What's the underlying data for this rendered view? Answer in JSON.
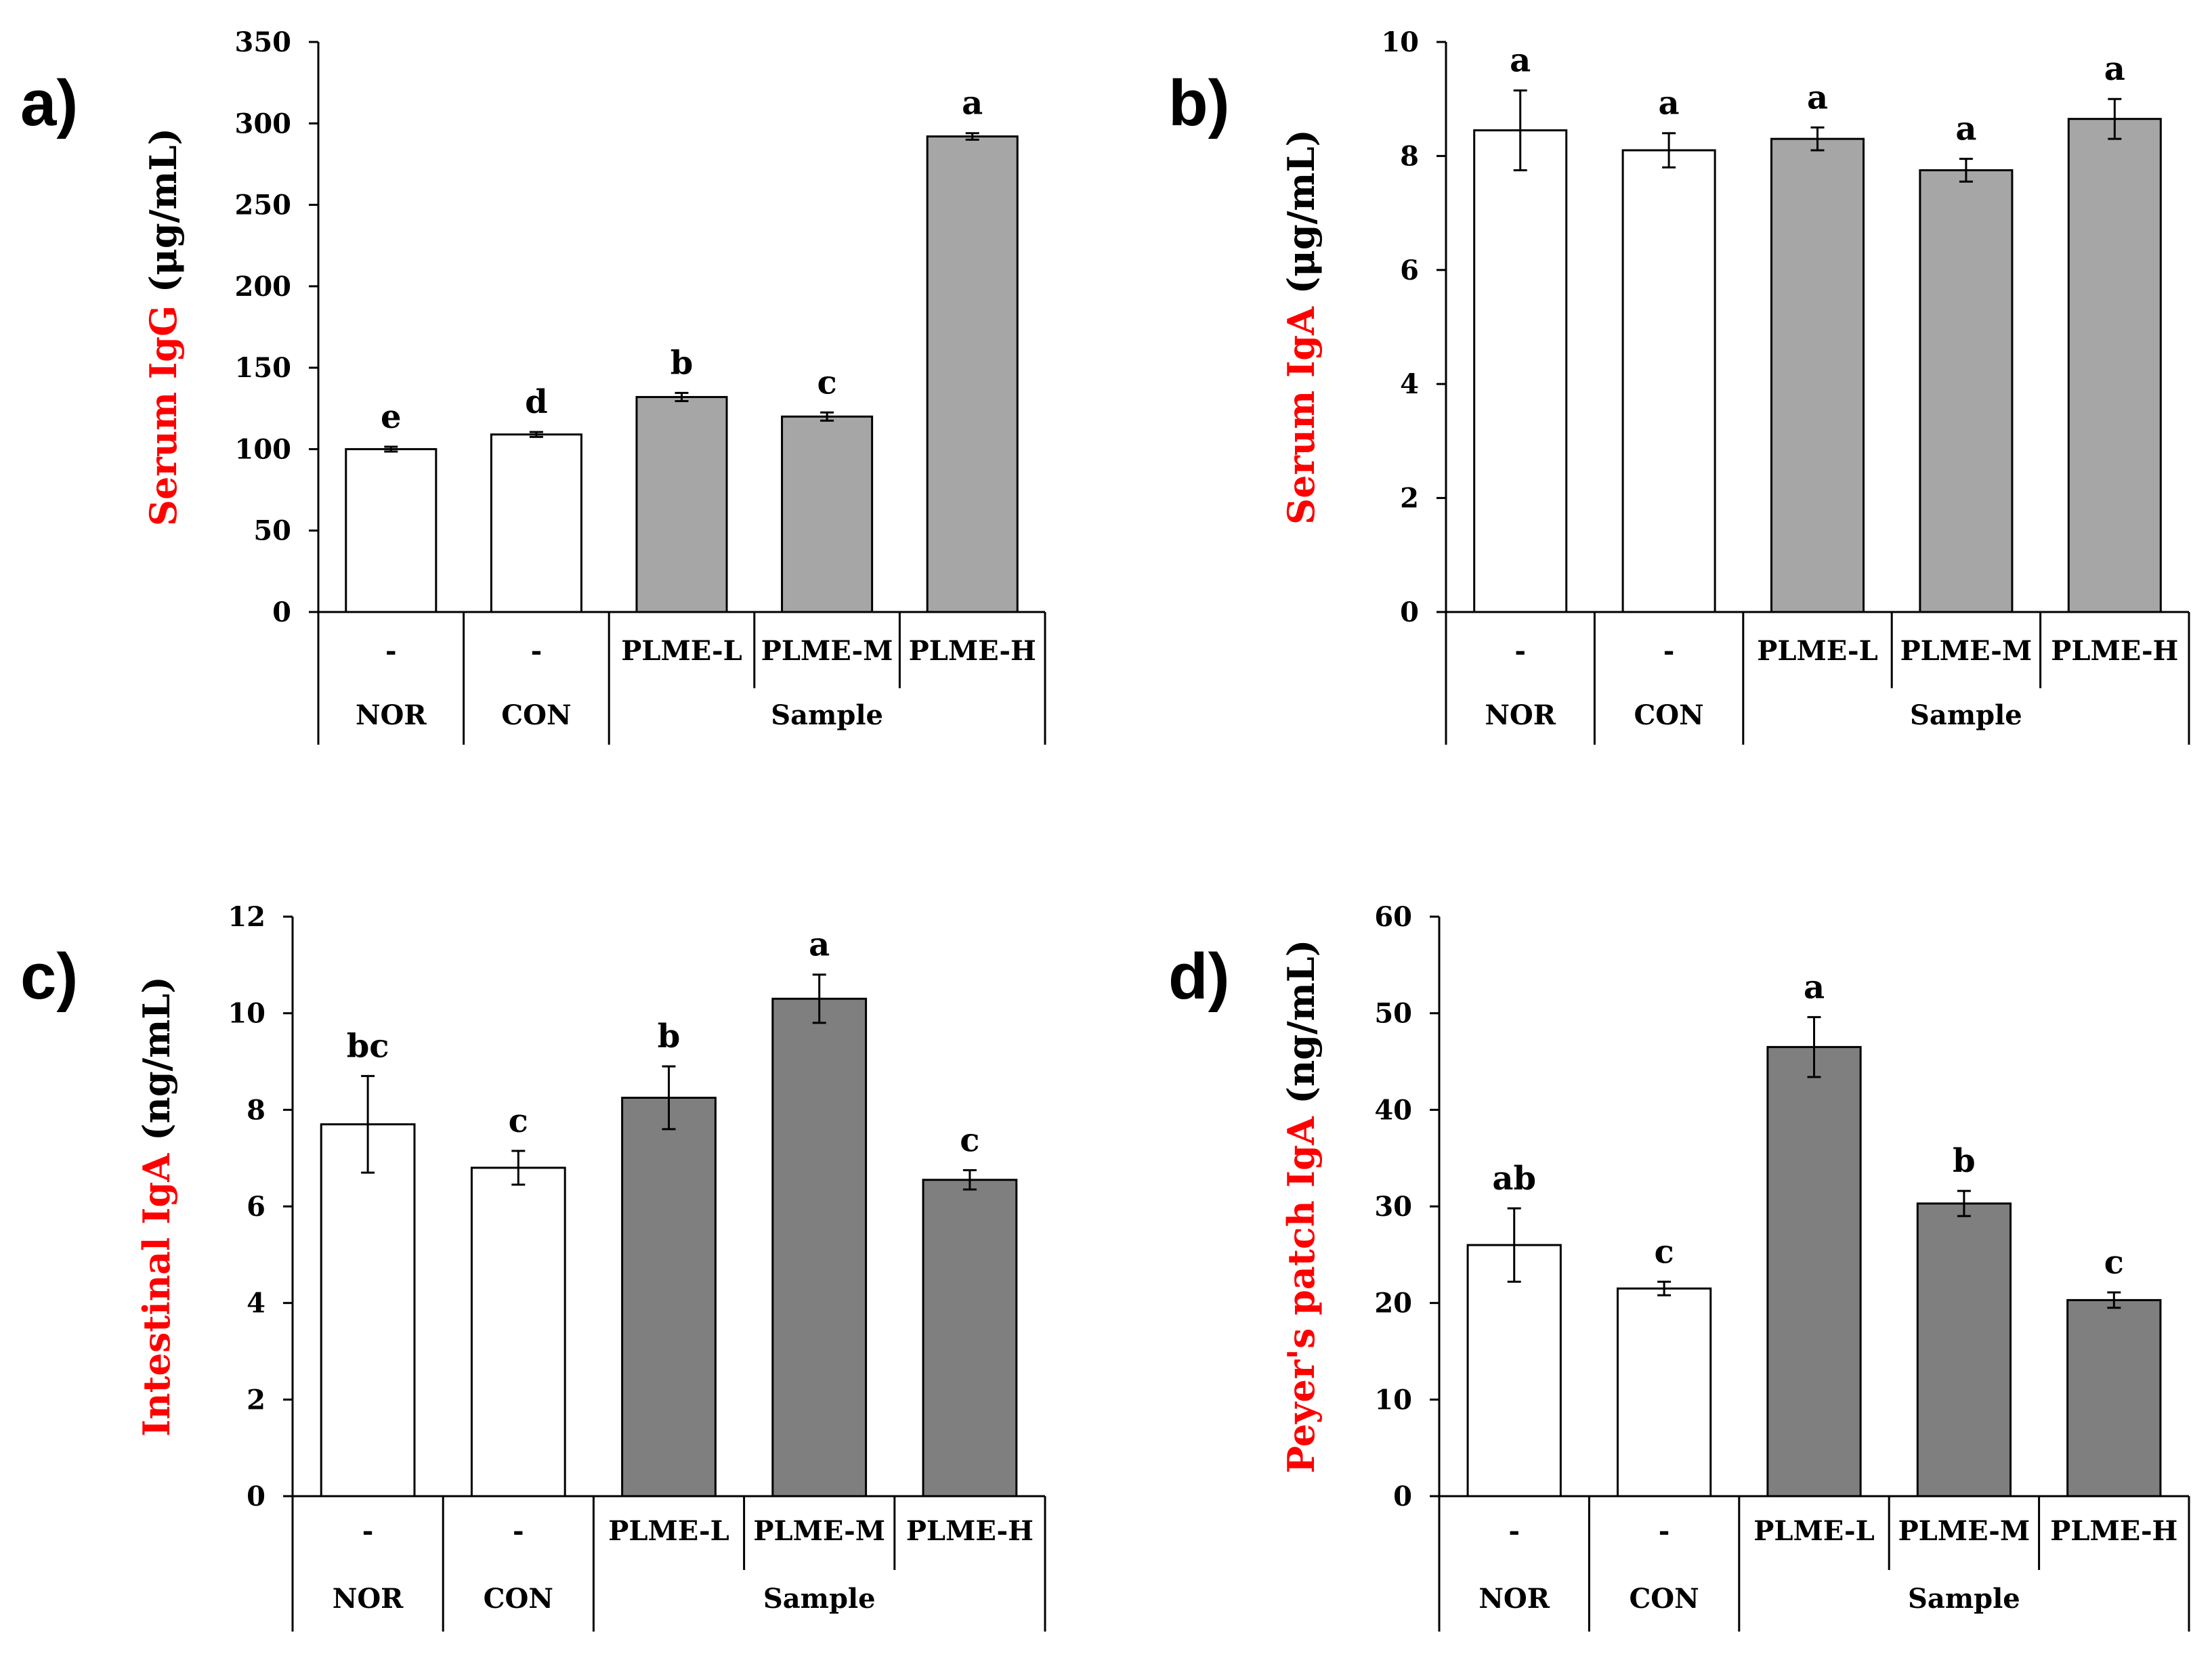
{
  "colors": {
    "open_bar": "#ffffff",
    "light_gray_bar": "#a6a6a6",
    "dark_gray_bar": "#7f7f7f",
    "axis": "#000000",
    "ylabel_highlight": "#ff0000",
    "ylabel_rest": "#000000"
  },
  "chart_data": [
    {
      "panel": "a)",
      "type": "bar",
      "ylabel": {
        "highlight": "Serum IgG",
        "rest": " (μg/mL)"
      },
      "ylim": [
        0,
        350
      ],
      "yticks": [
        "0",
        "50",
        "100",
        "150",
        "200",
        "250",
        "300",
        "350"
      ],
      "categories": [
        "-",
        "-",
        "PLME-L",
        "PLME-M",
        "PLME-H"
      ],
      "groups": [
        "NOR",
        "CON",
        "Sample"
      ],
      "values": [
        100,
        109,
        132,
        120,
        292
      ],
      "errors": [
        1.5,
        1.5,
        2.5,
        2.5,
        2.0
      ],
      "significance": [
        "e",
        "d",
        "b",
        "c",
        "a"
      ],
      "fills": [
        "open",
        "open",
        "light",
        "light",
        "light"
      ],
      "grid": false,
      "legend": "none"
    },
    {
      "panel": "b)",
      "type": "bar",
      "ylabel": {
        "highlight": "Serum IgA",
        "rest": " (μg/mL)"
      },
      "ylim": [
        0,
        10
      ],
      "yticks": [
        "0",
        "2",
        "4",
        "6",
        "8",
        "10"
      ],
      "categories": [
        "-",
        "-",
        "PLME-L",
        "PLME-M",
        "PLME-H"
      ],
      "groups": [
        "NOR",
        "CON",
        "Sample"
      ],
      "values": [
        8.45,
        8.1,
        8.3,
        7.75,
        8.65
      ],
      "errors": [
        0.7,
        0.3,
        0.2,
        0.2,
        0.35
      ],
      "significance": [
        "a",
        "a",
        "a",
        "a",
        "a"
      ],
      "fills": [
        "open",
        "open",
        "light",
        "light",
        "light"
      ],
      "grid": false,
      "legend": "none"
    },
    {
      "panel": "c)",
      "type": "bar",
      "ylabel": {
        "highlight": "Intestinal IgA",
        "rest": " (ng/mL)"
      },
      "ylim": [
        0,
        12
      ],
      "yticks": [
        "0",
        "2",
        "4",
        "6",
        "8",
        "10",
        "12"
      ],
      "categories": [
        "-",
        "-",
        "PLME-L",
        "PLME-M",
        "PLME-H"
      ],
      "groups": [
        "NOR",
        "CON",
        "Sample"
      ],
      "values": [
        7.7,
        6.8,
        8.25,
        10.3,
        6.55
      ],
      "errors": [
        1.0,
        0.35,
        0.65,
        0.5,
        0.2
      ],
      "significance": [
        "bc",
        "c",
        "b",
        "a",
        "c"
      ],
      "fills": [
        "open",
        "open",
        "dark",
        "dark",
        "dark"
      ],
      "grid": false,
      "legend": "none"
    },
    {
      "panel": "d)",
      "type": "bar",
      "ylabel": {
        "highlight": "Peyer's patch IgA",
        "rest": " (ng/mL)"
      },
      "ylim": [
        0,
        60
      ],
      "yticks": [
        "0",
        "10",
        "20",
        "30",
        "40",
        "50",
        "60"
      ],
      "categories": [
        "-",
        "-",
        "PLME-L",
        "PLME-M",
        "PLME-H"
      ],
      "groups": [
        "NOR",
        "CON",
        "Sample"
      ],
      "values": [
        26,
        21.5,
        46.5,
        30.3,
        20.3
      ],
      "errors": [
        3.8,
        0.7,
        3.1,
        1.3,
        0.8
      ],
      "significance": [
        "ab",
        "c",
        "a",
        "b",
        "c"
      ],
      "fills": [
        "open",
        "open",
        "dark",
        "dark",
        "dark"
      ],
      "grid": false,
      "legend": "none"
    }
  ]
}
